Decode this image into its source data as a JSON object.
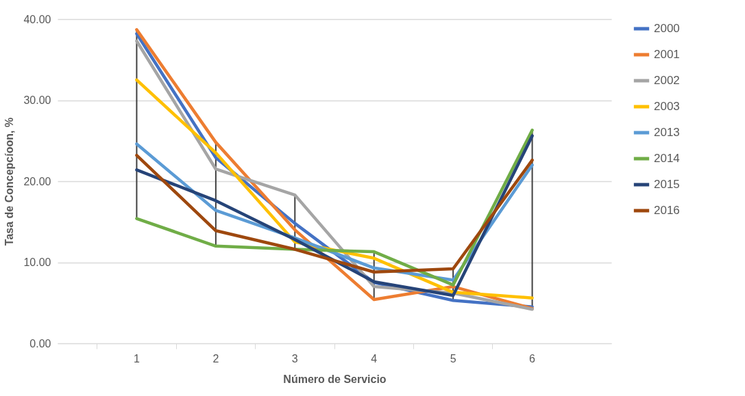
{
  "chart_data": {
    "type": "line",
    "xlabel": "Número de Servicio",
    "ylabel": "Tasa de Concepcíoon, %",
    "categories": [
      "1",
      "2",
      "3",
      "4",
      "5",
      "6"
    ],
    "series": [
      {
        "type": "bar",
        "color": "#404040",
        "base": [
          15.4,
          12.0,
          11.6,
          5.4,
          5.3,
          4.2
        ],
        "values": [
          23.3,
          12.8,
          6.7,
          5.9,
          3.9,
          22.1
        ]
      },
      {
        "name": "2000",
        "color": "#4472c4",
        "values": [
          38.2,
          22.9,
          14.8,
          7.5,
          5.3,
          4.5
        ]
      },
      {
        "name": "2001",
        "color": "#ed7d31",
        "values": [
          38.7,
          24.8,
          14.0,
          5.4,
          7.0,
          4.3
        ]
      },
      {
        "name": "2002",
        "color": "#a5a5a5",
        "values": [
          37.3,
          21.5,
          18.3,
          7.0,
          6.2,
          4.2
        ]
      },
      {
        "name": "2003",
        "color": "#ffc000",
        "values": [
          32.5,
          23.5,
          12.5,
          10.5,
          6.3,
          5.6
        ]
      },
      {
        "name": "2013",
        "color": "#5b9bd5",
        "values": [
          24.6,
          16.4,
          13.0,
          9.3,
          7.8,
          22.0
        ]
      },
      {
        "name": "2014",
        "color": "#70ad47",
        "values": [
          15.4,
          12.0,
          11.6,
          11.3,
          7.2,
          26.3
        ]
      },
      {
        "name": "2015",
        "color": "#264478",
        "values": [
          21.4,
          17.6,
          12.8,
          7.6,
          5.9,
          25.6
        ]
      },
      {
        "name": "2016",
        "color": "#9e480e",
        "values": [
          23.2,
          13.9,
          11.6,
          8.8,
          9.2,
          22.6
        ]
      }
    ],
    "ylim": [
      0,
      40
    ],
    "yticks": [
      {
        "value": 0,
        "label": "0.00"
      },
      {
        "value": 10,
        "label": "10.00"
      },
      {
        "value": 20,
        "label": "20.00"
      },
      {
        "value": 30,
        "label": "30.00"
      },
      {
        "value": 40,
        "label": "40.00"
      }
    ],
    "grid": "y",
    "legend": "right"
  }
}
